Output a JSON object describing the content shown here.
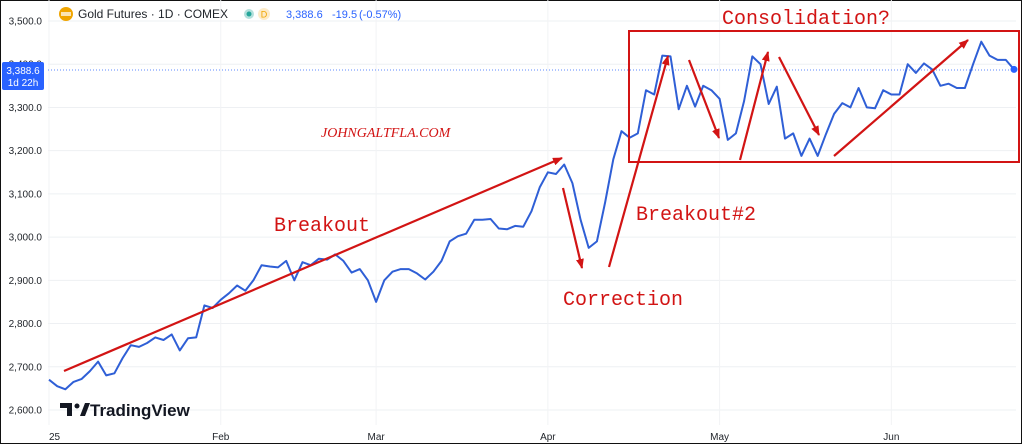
{
  "header": {
    "symbol_title": "Gold Futures · 1D · COMEX",
    "status_badge": "D",
    "last_price": "3,388.6",
    "change": "-19.5",
    "change_pct": "(-0.57%)"
  },
  "price_tag": {
    "price": "3,388.6",
    "countdown": "1d 22h"
  },
  "branding": {
    "logo_text": "TradingView"
  },
  "colors": {
    "line": "#2f5fd6",
    "annotation": "#d21414",
    "price_tag": "#2962ff",
    "badge_green": "#26a69a",
    "badge_orange": "#f0a500"
  },
  "annotations": {
    "watermark": "JOHNGALTFLA.COM",
    "breakout": "Breakout",
    "correction": "Correction",
    "breakout2": "Breakout#2",
    "consolidation": "Consolidation?"
  },
  "chart_data": {
    "type": "line",
    "title": "Gold Futures · 1D · COMEX",
    "xlabel": "",
    "ylabel": "",
    "y_ticks": [
      "3,500.0",
      "3,400.0",
      "3,300.0",
      "3,200.0",
      "3,100.0",
      "3,000.0",
      "2,900.0",
      "2,800.0",
      "2,700.0",
      "2,600.0"
    ],
    "x_ticks": [
      "25",
      "Feb",
      "Mar",
      "Apr",
      "May",
      "Jun"
    ],
    "ylim": [
      2580,
      3510
    ],
    "grid": true,
    "series": [
      {
        "values": [
          2670,
          2655,
          2648,
          2665,
          2672,
          2690,
          2712,
          2680,
          2685,
          2720,
          2750,
          2746,
          2755,
          2768,
          2762,
          2775,
          2738,
          2766,
          2768,
          2842,
          2836,
          2855,
          2870,
          2888,
          2876,
          2900,
          2935,
          2932,
          2930,
          2945,
          2900,
          2942,
          2935,
          2950,
          2948,
          2960,
          2945,
          2918,
          2926,
          2900,
          2850,
          2900,
          2920,
          2926,
          2926,
          2916,
          2902,
          2920,
          2945,
          2990,
          3002,
          3008,
          3040,
          3040,
          3042,
          3020,
          3018,
          3026,
          3024,
          3060,
          3115,
          3150,
          3146,
          3168,
          3125,
          3040,
          2975,
          2990,
          3080,
          3180,
          3245,
          3230,
          3240,
          3340,
          3330,
          3420,
          3418,
          3296,
          3350,
          3302,
          3350,
          3340,
          3320,
          3225,
          3240,
          3315,
          3418,
          3400,
          3308,
          3348,
          3228,
          3240,
          3188,
          3228,
          3188,
          3238,
          3285,
          3310,
          3300,
          3345,
          3300,
          3298,
          3340,
          3330,
          3330,
          3400,
          3380,
          3402,
          3388,
          3350,
          3355,
          3345,
          3345,
          3400,
          3452,
          3420,
          3410,
          3410,
          3388
        ]
      }
    ]
  }
}
